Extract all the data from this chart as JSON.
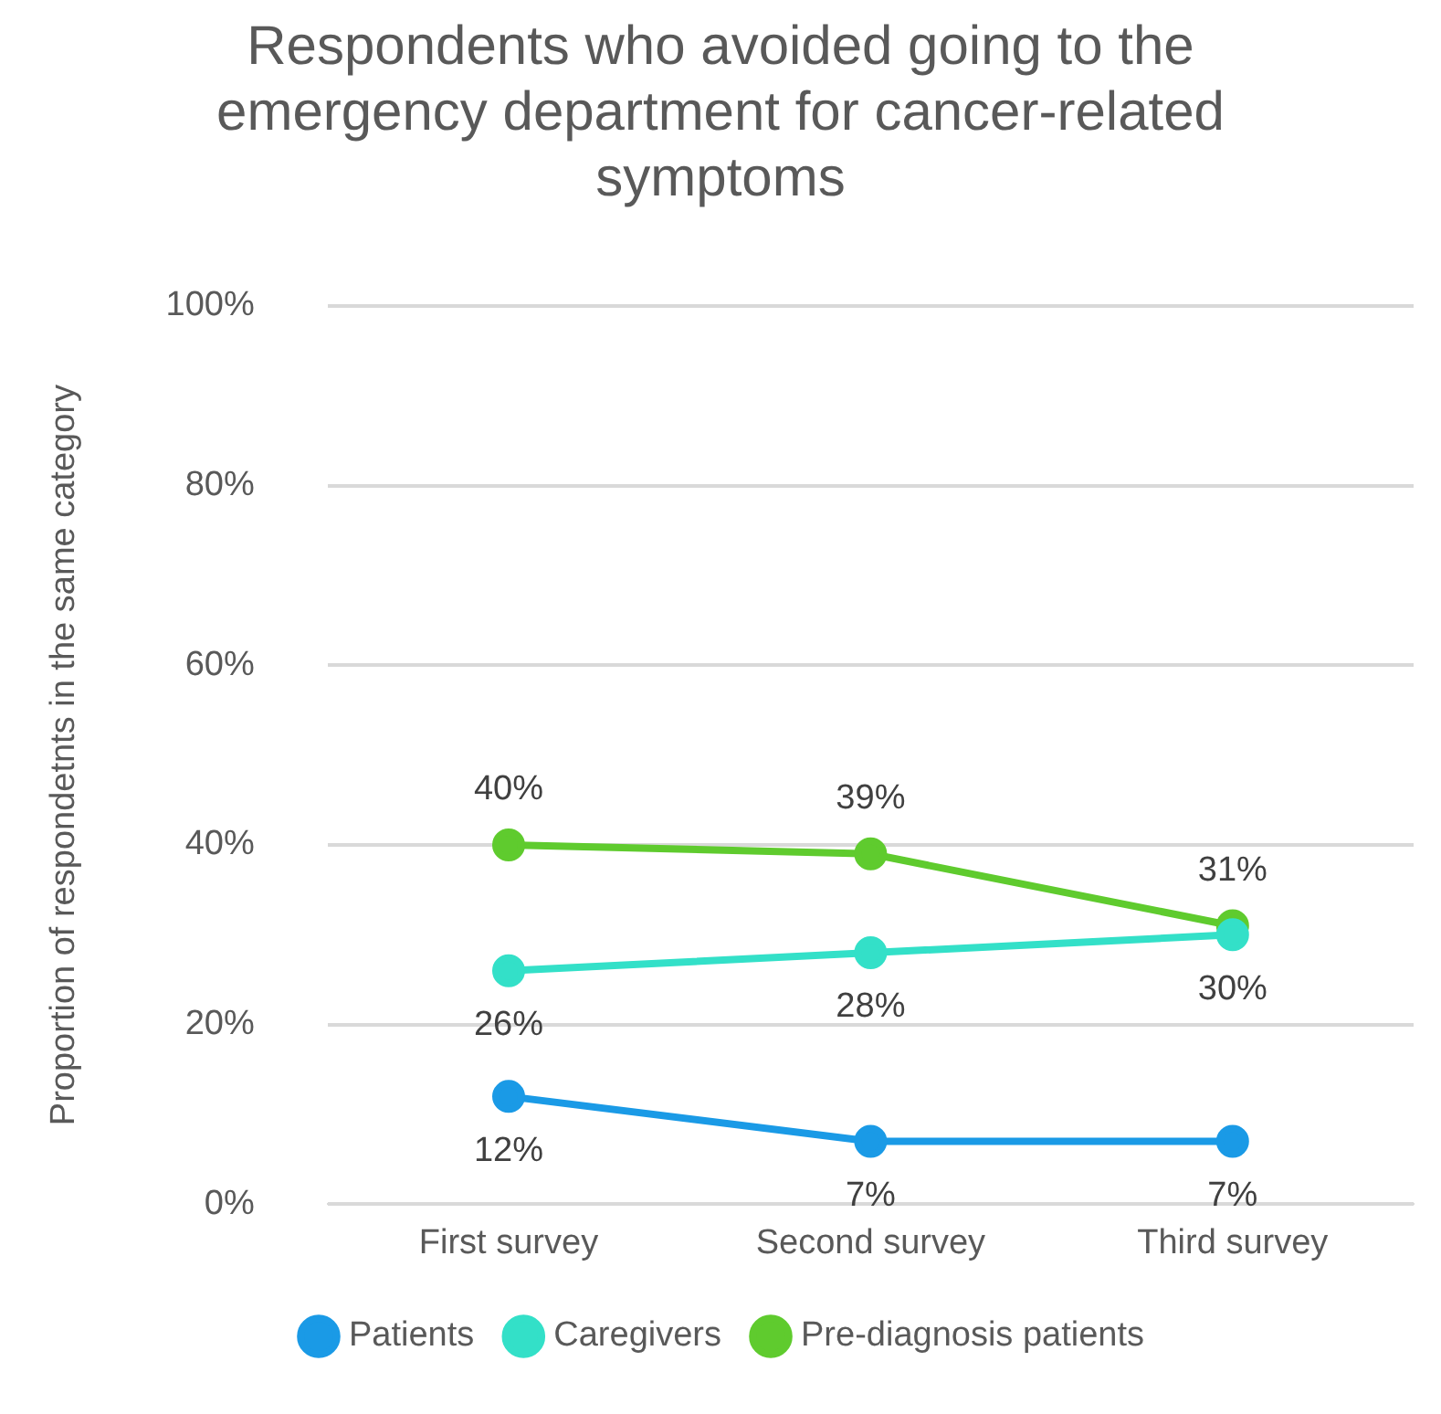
{
  "chart_data": {
    "type": "line",
    "title": "Respondents who avoided going to the emergency department for cancer-related symptoms",
    "ylabel": "Proportion of respondetnts in the same category",
    "categories": [
      "First survey",
      "Second survey",
      "Third survey"
    ],
    "series": [
      {
        "name": "Patients",
        "color": "#1a9ae6",
        "values": [
          12,
          7,
          7
        ],
        "value_labels": [
          "12%",
          "7%",
          "7%"
        ]
      },
      {
        "name": "Caregivers",
        "color": "#33e0c8",
        "values": [
          26,
          28,
          30
        ],
        "value_labels": [
          "26%",
          "28%",
          "30%"
        ]
      },
      {
        "name": "Pre-diagnosis patients",
        "color": "#5fcb2e",
        "values": [
          40,
          39,
          31
        ],
        "value_labels": [
          "40%",
          "39%",
          "31%"
        ]
      }
    ],
    "ylim": [
      0,
      100
    ],
    "yticks": [
      {
        "value": 0,
        "label": "0%"
      },
      {
        "value": 20,
        "label": "20%"
      },
      {
        "value": 40,
        "label": "40%"
      },
      {
        "value": 60,
        "label": "60%"
      },
      {
        "value": 80,
        "label": "80%"
      },
      {
        "value": 100,
        "label": "100%"
      }
    ],
    "grid": "y",
    "legend": "bottom",
    "marker": "circle",
    "line_style": "solid"
  }
}
